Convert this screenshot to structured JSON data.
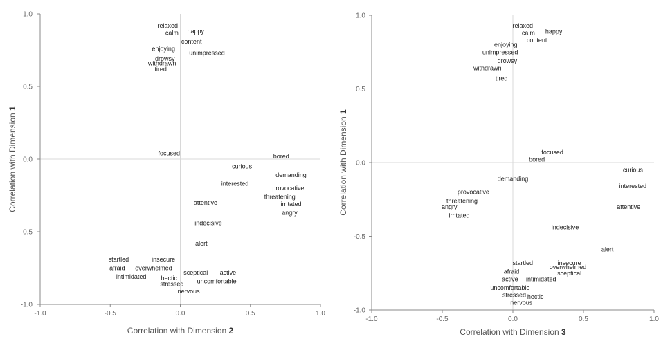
{
  "chart_data": [
    {
      "type": "scatter",
      "xlabel": "Correlation with Dimension 2",
      "xlabel_parts": [
        "Correlation with Dimension ",
        "2"
      ],
      "ylabel": "Correlation with Dimension 1",
      "ylabel_parts": [
        "Correlation with Dimension ",
        "1"
      ],
      "xlim": [
        -1.0,
        1.0
      ],
      "ylim": [
        -1.0,
        1.0
      ],
      "x_ticks": [
        "-1.0",
        "-0.5",
        "0.0",
        "0.5",
        "1.0"
      ],
      "y_ticks": [
        "-1.0",
        "-0.5",
        "0.0",
        "0.5",
        "1.0"
      ],
      "grid": false,
      "points": [
        {
          "label": "relaxed",
          "x": -0.09,
          "y": 0.92
        },
        {
          "label": "calm",
          "x": -0.06,
          "y": 0.87
        },
        {
          "label": "happy",
          "x": 0.11,
          "y": 0.88
        },
        {
          "label": "content",
          "x": 0.08,
          "y": 0.81
        },
        {
          "label": "enjoying",
          "x": -0.12,
          "y": 0.76
        },
        {
          "label": "unimpressed",
          "x": 0.19,
          "y": 0.73
        },
        {
          "label": "drowsy",
          "x": -0.11,
          "y": 0.69
        },
        {
          "label": "withdrawn",
          "x": -0.13,
          "y": 0.66
        },
        {
          "label": "tired",
          "x": -0.14,
          "y": 0.62
        },
        {
          "label": "focused",
          "x": -0.08,
          "y": 0.04
        },
        {
          "label": "bored",
          "x": 0.72,
          "y": 0.02
        },
        {
          "label": "curious",
          "x": 0.44,
          "y": -0.05
        },
        {
          "label": "demanding",
          "x": 0.79,
          "y": -0.11
        },
        {
          "label": "interested",
          "x": 0.39,
          "y": -0.17
        },
        {
          "label": "provocative",
          "x": 0.77,
          "y": -0.2
        },
        {
          "label": "threatening",
          "x": 0.71,
          "y": -0.26
        },
        {
          "label": "irritated",
          "x": 0.79,
          "y": -0.31
        },
        {
          "label": "attentive",
          "x": 0.18,
          "y": -0.3
        },
        {
          "label": "angry",
          "x": 0.78,
          "y": -0.37
        },
        {
          "label": "indecisive",
          "x": 0.2,
          "y": -0.44
        },
        {
          "label": "alert",
          "x": 0.15,
          "y": -0.58
        },
        {
          "label": "startled",
          "x": -0.44,
          "y": -0.69
        },
        {
          "label": "insecure",
          "x": -0.12,
          "y": -0.69
        },
        {
          "label": "afraid",
          "x": -0.45,
          "y": -0.75
        },
        {
          "label": "overwhelmed",
          "x": -0.19,
          "y": -0.75
        },
        {
          "label": "sceptical",
          "x": 0.11,
          "y": -0.78
        },
        {
          "label": "active",
          "x": 0.34,
          "y": -0.78
        },
        {
          "label": "intimidated",
          "x": -0.35,
          "y": -0.81
        },
        {
          "label": "hectic",
          "x": -0.08,
          "y": -0.82
        },
        {
          "label": "uncomfortable",
          "x": 0.26,
          "y": -0.84
        },
        {
          "label": "stressed",
          "x": -0.06,
          "y": -0.86
        },
        {
          "label": "nervous",
          "x": 0.06,
          "y": -0.91
        }
      ]
    },
    {
      "type": "scatter",
      "xlabel": "Correlation with Dimension 3",
      "xlabel_parts": [
        "Correlation with Dimension ",
        "3"
      ],
      "ylabel": "Correlation with Dimension 1",
      "ylabel_parts": [
        "Correlation with Dimension ",
        "1"
      ],
      "xlim": [
        -1.0,
        1.0
      ],
      "ylim": [
        -1.0,
        1.0
      ],
      "x_ticks": [
        "-1.0",
        "-0.5",
        "0.0",
        "0.5",
        "1.0"
      ],
      "y_ticks": [
        "-1.0",
        "-0.5",
        "0.0",
        "0.5",
        "1.0"
      ],
      "grid": false,
      "points": [
        {
          "label": "relaxed",
          "x": 0.07,
          "y": 0.93
        },
        {
          "label": "calm",
          "x": 0.11,
          "y": 0.88
        },
        {
          "label": "happy",
          "x": 0.29,
          "y": 0.89
        },
        {
          "label": "content",
          "x": 0.17,
          "y": 0.83
        },
        {
          "label": "enjoying",
          "x": -0.05,
          "y": 0.8
        },
        {
          "label": "unimpressed",
          "x": -0.09,
          "y": 0.75
        },
        {
          "label": "drowsy",
          "x": -0.04,
          "y": 0.69
        },
        {
          "label": "withdrawn",
          "x": -0.18,
          "y": 0.64
        },
        {
          "label": "tired",
          "x": -0.08,
          "y": 0.57
        },
        {
          "label": "focused",
          "x": 0.28,
          "y": 0.07
        },
        {
          "label": "bored",
          "x": 0.17,
          "y": 0.02
        },
        {
          "label": "curious",
          "x": 0.85,
          "y": -0.05
        },
        {
          "label": "interested",
          "x": 0.85,
          "y": -0.16
        },
        {
          "label": "demanding",
          "x": 0.0,
          "y": -0.11
        },
        {
          "label": "provocative",
          "x": -0.28,
          "y": -0.2
        },
        {
          "label": "threatening",
          "x": -0.36,
          "y": -0.26
        },
        {
          "label": "angry",
          "x": -0.45,
          "y": -0.3
        },
        {
          "label": "attentive",
          "x": 0.82,
          "y": -0.3
        },
        {
          "label": "irritated",
          "x": -0.38,
          "y": -0.36
        },
        {
          "label": "indecisive",
          "x": 0.37,
          "y": -0.44
        },
        {
          "label": "alert",
          "x": 0.67,
          "y": -0.59
        },
        {
          "label": "startled",
          "x": 0.07,
          "y": -0.68
        },
        {
          "label": "insecure",
          "x": 0.4,
          "y": -0.68
        },
        {
          "label": "overwhelmed",
          "x": 0.39,
          "y": -0.71
        },
        {
          "label": "afraid",
          "x": -0.01,
          "y": -0.74
        },
        {
          "label": "sceptical",
          "x": 0.4,
          "y": -0.75
        },
        {
          "label": "active",
          "x": -0.02,
          "y": -0.79
        },
        {
          "label": "intimidated",
          "x": 0.2,
          "y": -0.79
        },
        {
          "label": "uncomfortable",
          "x": -0.02,
          "y": -0.85
        },
        {
          "label": "stressed",
          "x": 0.01,
          "y": -0.9
        },
        {
          "label": "hectic",
          "x": 0.16,
          "y": -0.91
        },
        {
          "label": "nervous",
          "x": 0.06,
          "y": -0.95
        }
      ]
    }
  ]
}
